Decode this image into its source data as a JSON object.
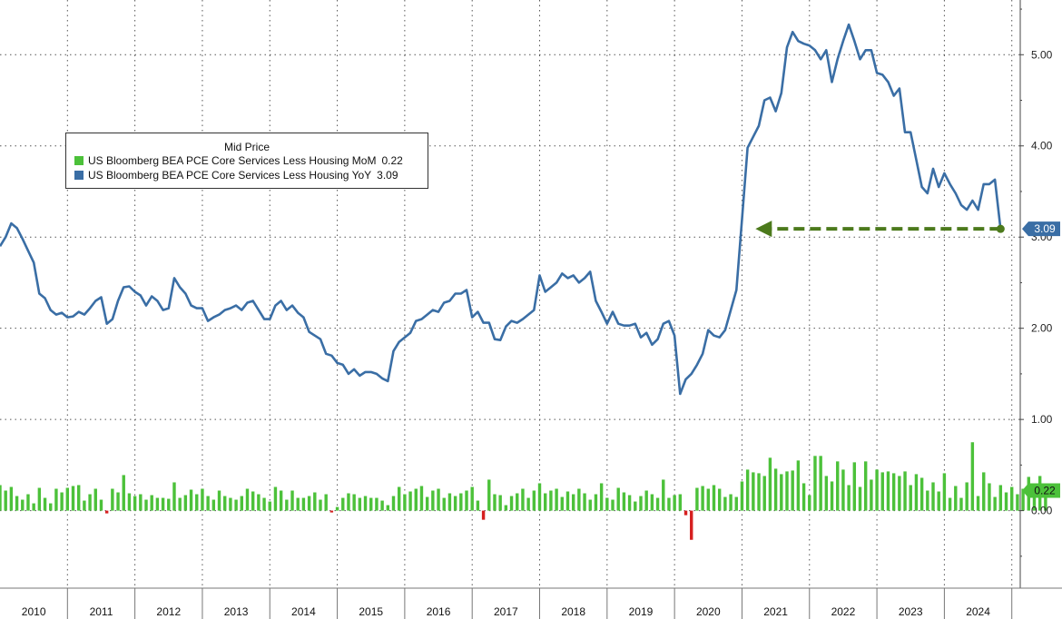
{
  "colors": {
    "yoy": "#3a6ea5",
    "mom_pos": "#4cc13a",
    "mom_neg": "#d62020",
    "arrow": "#4c7a1c",
    "grid": "#555555"
  },
  "legend": {
    "title": "Mid Price",
    "items": [
      {
        "label": "US Bloomberg BEA PCE Core Services Less Housing MoM",
        "value": "0.22",
        "color": "#4cc13a"
      },
      {
        "label": "US Bloomberg BEA PCE Core Services Less Housing YoY",
        "value": "3.09",
        "color": "#3a6ea5"
      }
    ]
  },
  "chart_data": {
    "type": "line",
    "x_start": "2010-01",
    "x_end": "2024-10",
    "xlim": [
      2010.0,
      2025.125
    ],
    "ylim": [
      -0.85,
      5.6
    ],
    "y_ticks": [
      "0.00",
      "1.00",
      "2.00",
      "3.00",
      "4.00",
      "5.00"
    ],
    "x_tick_labels": [
      "2010",
      "2011",
      "2012",
      "2013",
      "2014",
      "2015",
      "2016",
      "2017",
      "2018",
      "2019",
      "2020",
      "2021",
      "2022",
      "2023",
      "2024"
    ],
    "grid": true,
    "legend_position": "top-left",
    "badges": {
      "yoy_last": "3.09",
      "mom_last": "0.22"
    },
    "series": [
      {
        "name": "US Bloomberg BEA PCE Core Services Less Housing YoY",
        "type": "line",
        "values": [
          2.9,
          3.0,
          3.15,
          3.1,
          2.98,
          2.85,
          2.72,
          2.38,
          2.33,
          2.2,
          2.15,
          2.17,
          2.12,
          2.13,
          2.18,
          2.15,
          2.22,
          2.3,
          2.34,
          2.05,
          2.1,
          2.3,
          2.45,
          2.46,
          2.4,
          2.36,
          2.25,
          2.35,
          2.3,
          2.2,
          2.22,
          2.55,
          2.45,
          2.38,
          2.25,
          2.22,
          2.22,
          2.08,
          2.12,
          2.15,
          2.2,
          2.22,
          2.25,
          2.2,
          2.28,
          2.3,
          2.2,
          2.1,
          2.1,
          2.25,
          2.3,
          2.2,
          2.25,
          2.17,
          2.12,
          1.96,
          1.92,
          1.88,
          1.72,
          1.7,
          1.62,
          1.6,
          1.5,
          1.55,
          1.48,
          1.52,
          1.52,
          1.5,
          1.45,
          1.42,
          1.75,
          1.85,
          1.9,
          1.95,
          2.08,
          2.1,
          2.15,
          2.2,
          2.18,
          2.28,
          2.3,
          2.38,
          2.38,
          2.42,
          2.12,
          2.18,
          2.06,
          2.06,
          1.88,
          1.87,
          2.02,
          2.08,
          2.06,
          2.1,
          2.15,
          2.2,
          2.58,
          2.4,
          2.45,
          2.5,
          2.6,
          2.55,
          2.58,
          2.5,
          2.55,
          2.62,
          2.3,
          2.18,
          2.05,
          2.18,
          2.05,
          2.03,
          2.03,
          2.05,
          1.9,
          1.95,
          1.82,
          1.88,
          2.05,
          2.08,
          1.92,
          1.28,
          1.44,
          1.5,
          1.6,
          1.72,
          1.98,
          1.92,
          1.9,
          1.98,
          2.2,
          2.42,
          3.2,
          3.98,
          4.1,
          4.22,
          4.5,
          4.53,
          4.38,
          4.58,
          5.08,
          5.25,
          5.15,
          5.12,
          5.1,
          5.05,
          4.95,
          5.05,
          4.7,
          4.95,
          5.15,
          5.33,
          5.15,
          4.95,
          5.05,
          5.05,
          4.8,
          4.78,
          4.7,
          4.55,
          4.63,
          4.15,
          4.15,
          3.85,
          3.55,
          3.48,
          3.75,
          3.55,
          3.7,
          3.58,
          3.48,
          3.35,
          3.3,
          3.4,
          3.3,
          3.58,
          3.58,
          3.63,
          3.09
        ]
      },
      {
        "name": "US Bloomberg BEA PCE Core Services Less Housing MoM",
        "type": "bar",
        "values": [
          0.28,
          0.22,
          0.26,
          0.16,
          0.12,
          0.18,
          0.08,
          0.25,
          0.14,
          0.08,
          0.24,
          0.2,
          0.25,
          0.27,
          0.28,
          0.11,
          0.18,
          0.24,
          0.12,
          -0.03,
          0.24,
          0.2,
          0.39,
          0.19,
          0.16,
          0.18,
          0.12,
          0.17,
          0.14,
          0.14,
          0.13,
          0.31,
          0.14,
          0.17,
          0.23,
          0.18,
          0.24,
          0.16,
          0.12,
          0.22,
          0.16,
          0.14,
          0.12,
          0.16,
          0.24,
          0.21,
          0.18,
          0.14,
          0.1,
          0.26,
          0.22,
          0.12,
          0.22,
          0.14,
          0.14,
          0.16,
          0.2,
          0.12,
          0.18,
          -0.02,
          0.04,
          0.14,
          0.19,
          0.18,
          0.14,
          0.16,
          0.14,
          0.14,
          0.11,
          0.06,
          0.16,
          0.26,
          0.18,
          0.21,
          0.24,
          0.27,
          0.15,
          0.22,
          0.24,
          0.14,
          0.19,
          0.16,
          0.19,
          0.22,
          0.26,
          0.11,
          -0.1,
          0.34,
          0.18,
          0.17,
          0.06,
          0.16,
          0.19,
          0.24,
          0.14,
          0.22,
          0.3,
          0.19,
          0.22,
          0.24,
          0.15,
          0.21,
          0.18,
          0.24,
          0.19,
          0.12,
          0.18,
          0.3,
          0.14,
          0.12,
          0.25,
          0.2,
          0.17,
          0.1,
          0.16,
          0.22,
          0.18,
          0.14,
          0.34,
          0.14,
          0.17,
          0.18,
          -0.05,
          -0.32,
          0.25,
          0.27,
          0.24,
          0.28,
          0.24,
          0.15,
          0.18,
          0.15,
          0.32,
          0.45,
          0.42,
          0.41,
          0.38,
          0.58,
          0.46,
          0.4,
          0.43,
          0.44,
          0.55,
          0.3,
          0.17,
          0.6,
          0.6,
          0.38,
          0.32,
          0.54,
          0.45,
          0.28,
          0.53,
          0.26,
          0.54,
          0.34,
          0.45,
          0.42,
          0.43,
          0.41,
          0.38,
          0.43,
          0.28,
          0.4,
          0.36,
          0.22,
          0.31,
          0.21,
          0.41,
          0.14,
          0.27,
          0.14,
          0.31,
          0.75,
          0.16,
          0.42,
          0.3,
          0.15,
          0.28,
          0.2,
          0.26,
          0.18,
          0.24,
          0.37,
          0.16,
          0.38,
          0.22
        ]
      }
    ]
  }
}
